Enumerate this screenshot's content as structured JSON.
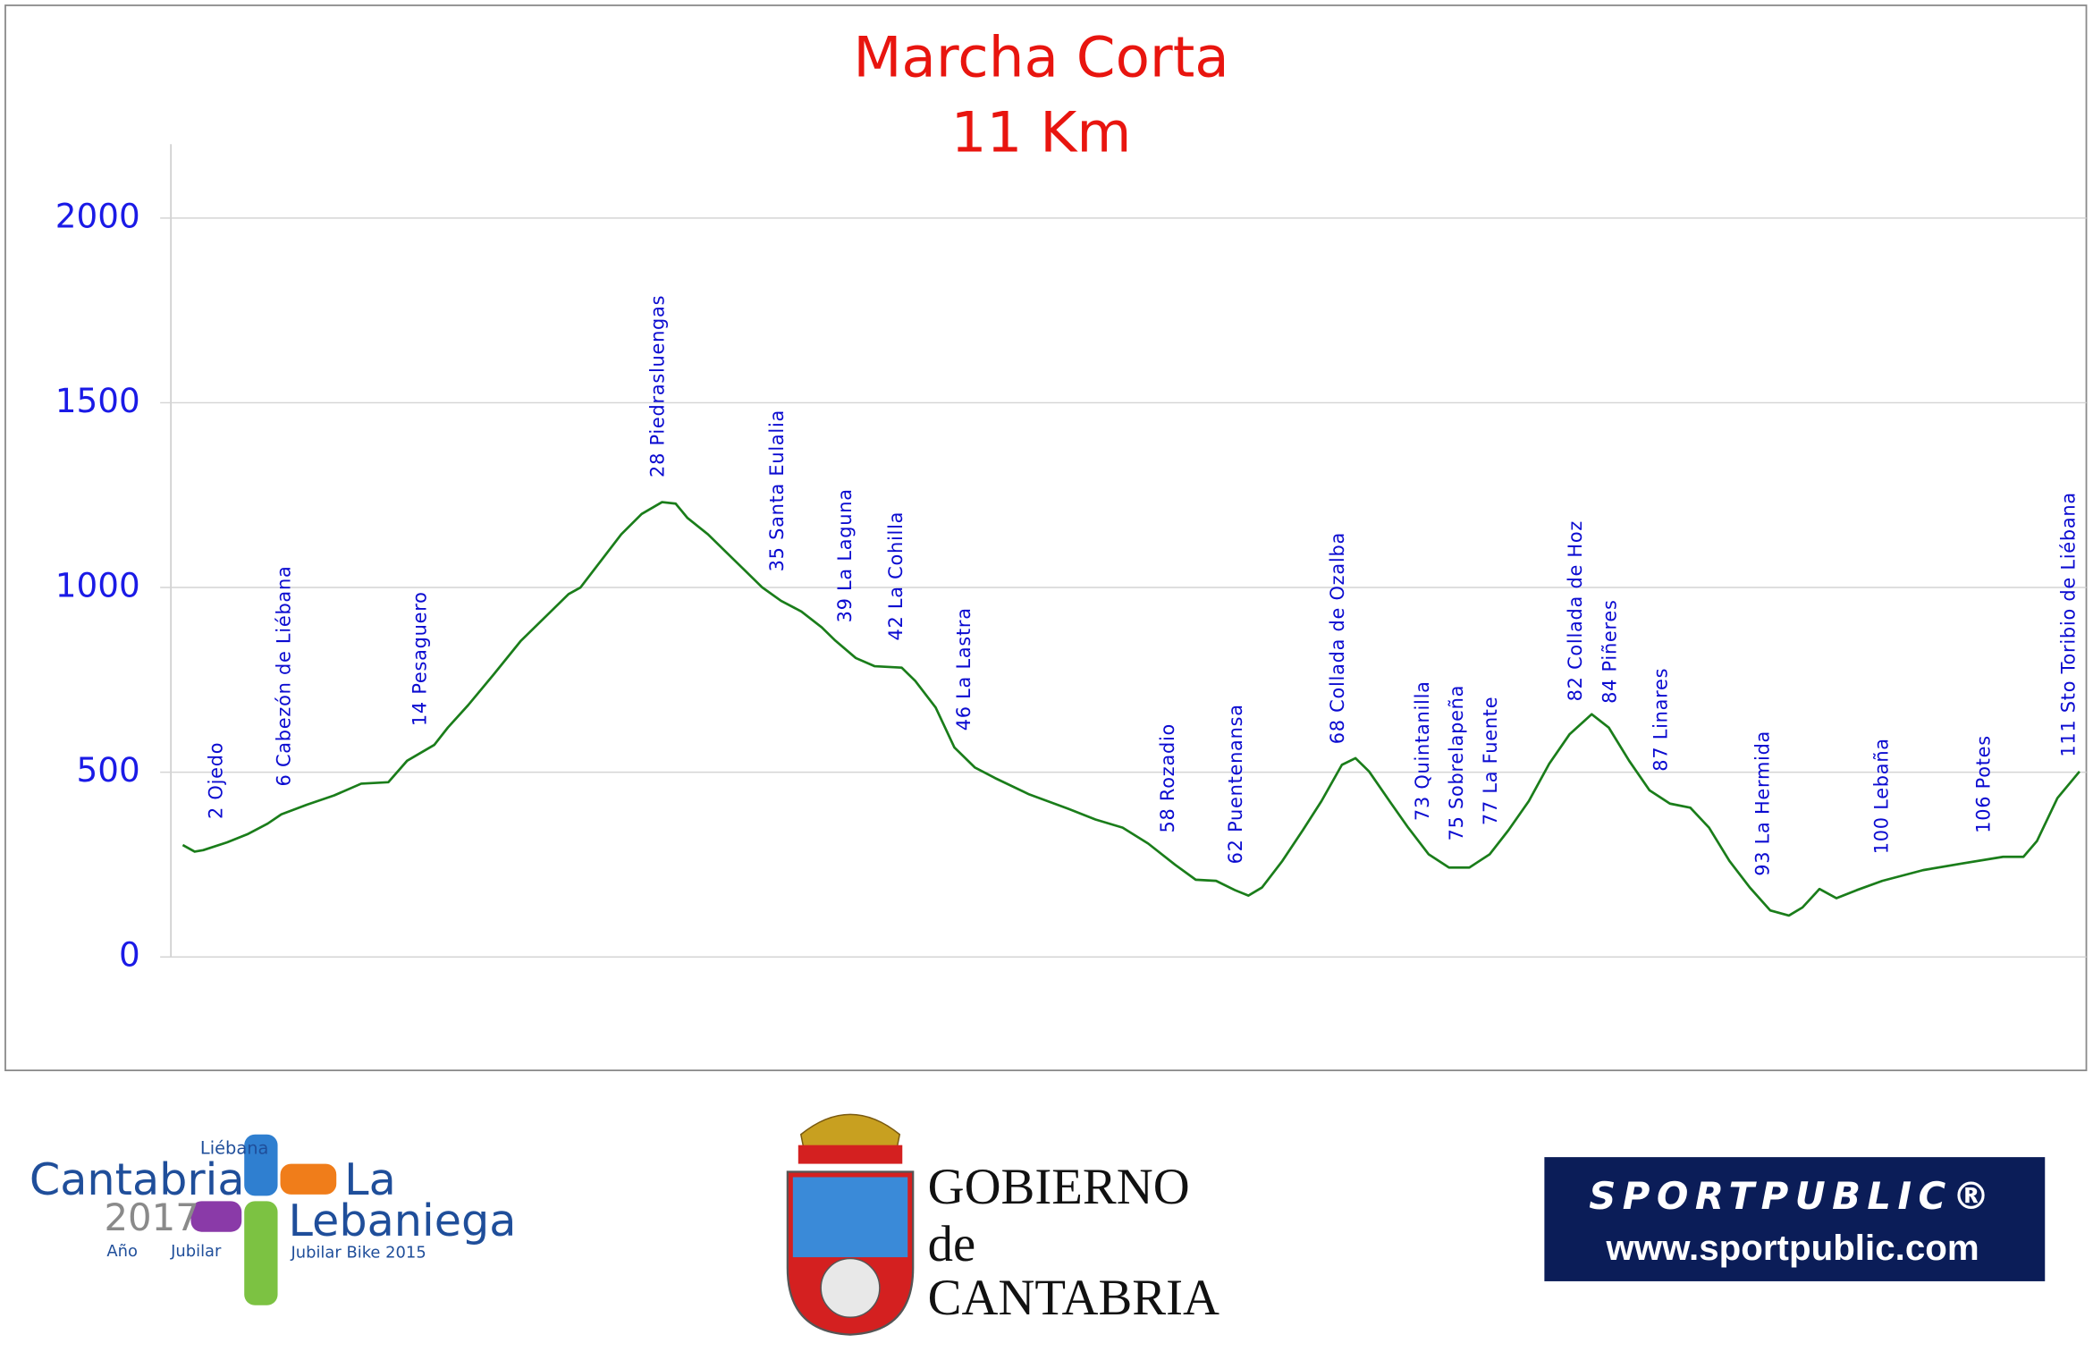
{
  "chart_data": {
    "type": "line",
    "title": "Marcha Corta",
    "subtitle": "11 Km",
    "color": "#1a7d1a",
    "grid": true,
    "ylim": [
      0,
      2200
    ],
    "yticks": [
      0,
      500,
      1000,
      1500,
      2000
    ],
    "xlim": [
      -0.7,
      112
    ],
    "x": [
      0,
      0.7,
      1.2,
      2.6,
      3.8,
      5.0,
      5.8,
      7.3,
      8.9,
      10.5,
      12.1,
      13.2,
      14.8,
      15.6,
      16.8,
      18.3,
      19.9,
      21.5,
      22.7,
      23.4,
      24.6,
      25.8,
      27.0,
      28.2,
      29.0,
      29.7,
      30.9,
      32.5,
      34.1,
      35.2,
      36.4,
      37.6,
      38.4,
      39.6,
      40.7,
      42.3,
      43.1,
      44.3,
      45.4,
      46.6,
      47.8,
      49.8,
      52.1,
      53.7,
      55.3,
      56.8,
      58.4,
      59.6,
      60.8,
      61.9,
      62.7,
      63.5,
      64.7,
      65.9,
      67.0,
      68.2,
      69.0,
      69.8,
      71.0,
      72.1,
      73.3,
      74.5,
      75.7,
      76.9,
      78.0,
      79.2,
      80.4,
      81.6,
      82.9,
      83.9,
      85.1,
      86.3,
      87.5,
      88.7,
      89.8,
      91.0,
      92.2,
      93.4,
      94.5,
      95.3,
      96.3,
      97.3,
      98.5,
      100.0,
      102.4,
      104.7,
      107.1,
      108.3,
      109.1,
      110.3,
      111.6
    ],
    "values": [
      303,
      285,
      289,
      310,
      332,
      361,
      386,
      412,
      437,
      469,
      473,
      531,
      574,
      621,
      682,
      765,
      856,
      928,
      982,
      1000,
      1072,
      1144,
      1199,
      1231,
      1227,
      1188,
      1144,
      1072,
      1000,
      964,
      935,
      892,
      856,
      809,
      787,
      783,
      747,
      675,
      567,
      513,
      484,
      440,
      401,
      372,
      350,
      307,
      249,
      209,
      206,
      181,
      166,
      188,
      260,
      343,
      422,
      520,
      538,
      502,
      422,
      350,
      278,
      242,
      242,
      278,
      343,
      422,
      523,
      603,
      657,
      621,
      531,
      451,
      415,
      404,
      350,
      260,
      188,
      126,
      112,
      134,
      184,
      159,
      181,
      206,
      235,
      253,
      271,
      271,
      314,
      430,
      502
    ],
    "annotations": [
      {
        "x": 2,
        "text": "2  Ojedo"
      },
      {
        "x": 6,
        "text": "6  Cabezón de Liébana"
      },
      {
        "x": 14,
        "text": "14  Pesaguero"
      },
      {
        "x": 28,
        "text": "28  Piedrasluengas"
      },
      {
        "x": 35,
        "text": "35  Santa Eulalia"
      },
      {
        "x": 39,
        "text": "39  La Laguna"
      },
      {
        "x": 42,
        "text": "42  La Cohilla"
      },
      {
        "x": 46,
        "text": "46  La Lastra"
      },
      {
        "x": 58,
        "text": "58  Rozadio"
      },
      {
        "x": 62,
        "text": "62  Puentenansa"
      },
      {
        "x": 68,
        "text": "68  Collada de Ozalba"
      },
      {
        "x": 73,
        "text": "73  Quintanilla"
      },
      {
        "x": 75,
        "text": "75  Sobrelapeña"
      },
      {
        "x": 77,
        "text": "77  La Fuente"
      },
      {
        "x": 82,
        "text": "82  Collada de Hoz"
      },
      {
        "x": 84,
        "text": "84  Piñeres"
      },
      {
        "x": 87,
        "text": "87  Linares"
      },
      {
        "x": 93,
        "text": "93  La Hermida"
      },
      {
        "x": 100,
        "text": "100  Lebaña"
      },
      {
        "x": 106,
        "text": "106  Potes"
      },
      {
        "x": 111,
        "text": "111  Sto Toribio de Liébana"
      }
    ]
  },
  "footer": {
    "lebaniega": {
      "top": "Liébana",
      "name": "Cantabria",
      "year": "2017",
      "ano": "Año",
      "jubilar": "Jubilar",
      "la": "La",
      "lebaniega": "Lebaniega",
      "bike": "Jubilar Bike 2015"
    },
    "gobierno": {
      "line1": "GOBIERNO",
      "line2": "de",
      "line3": "CANTABRIA"
    },
    "sportpublic": {
      "brand": "SPORTPUBLIC®",
      "url": "www.sportpublic.com"
    }
  }
}
